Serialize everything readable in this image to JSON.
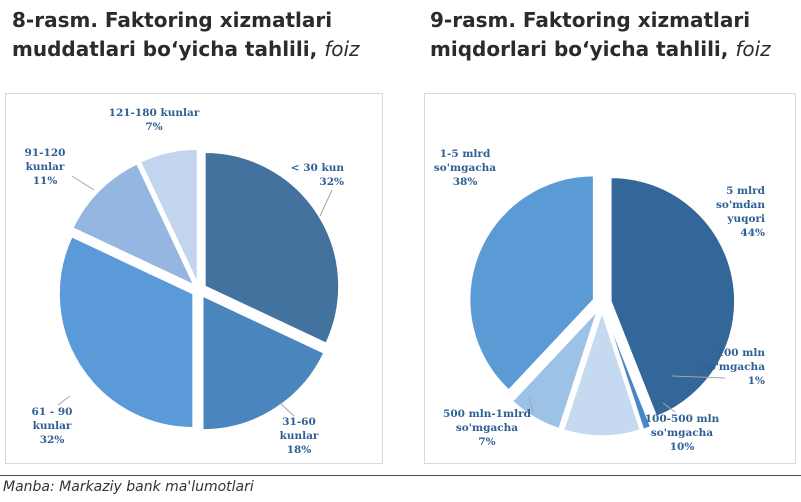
{
  "source": "Manba: Markaziy bank ma'lumotlari",
  "chart_data": [
    {
      "type": "pie",
      "title_main": "8-rasm. Faktoring xizmatlari",
      "title_line2": "muddatlari boʻyicha tahlili, ",
      "title_unit": "foiz",
      "slices": [
        {
          "label_lines": [
            "< 30 kun"
          ],
          "value_text": "32%",
          "value": 32,
          "color": "#43729f"
        },
        {
          "label_lines": [
            "31-60",
            "kunlar"
          ],
          "value_text": "18%",
          "value": 18,
          "color": "#4b85be"
        },
        {
          "label_lines": [
            "61 - 90",
            "kunlar"
          ],
          "value_text": "32%",
          "value": 32,
          "color": "#5b9ad9"
        },
        {
          "label_lines": [
            "91-120",
            "kunlar"
          ],
          "value_text": "11%",
          "value": 11,
          "color": "#94b6e0"
        },
        {
          "label_lines": [
            "121-180 kunlar"
          ],
          "value_text": "7%",
          "value": 7,
          "color": "#c2d4ee"
        }
      ]
    },
    {
      "type": "pie",
      "title_main": "9-rasm. Faktoring xizmatlari",
      "title_line2": "miqdorlari boʻyicha tahlili, ",
      "title_unit": "foiz",
      "slices": [
        {
          "label_lines": [
            "5 mlrd",
            "so'mdan",
            "yuqori"
          ],
          "value_text": "44%",
          "value": 44,
          "color": "#336699"
        },
        {
          "label_lines": [
            "100 mln",
            "so'mgacha"
          ],
          "value_text": "1%",
          "value": 1,
          "color": "#4a86c8"
        },
        {
          "label_lines": [
            "100-500 mln",
            "so'mgacha"
          ],
          "value_text": "10%",
          "value": 10,
          "color": "#c5d9f1"
        },
        {
          "label_lines": [
            "500 mln-1mlrd",
            "so'mgacha"
          ],
          "value_text": "7%",
          "value": 7,
          "color": "#9cc2e6"
        },
        {
          "label_lines": [
            "1-5 mlrd",
            "so'mgacha"
          ],
          "value_text": "38%",
          "value": 38,
          "color": "#5b9bd5"
        }
      ]
    }
  ]
}
